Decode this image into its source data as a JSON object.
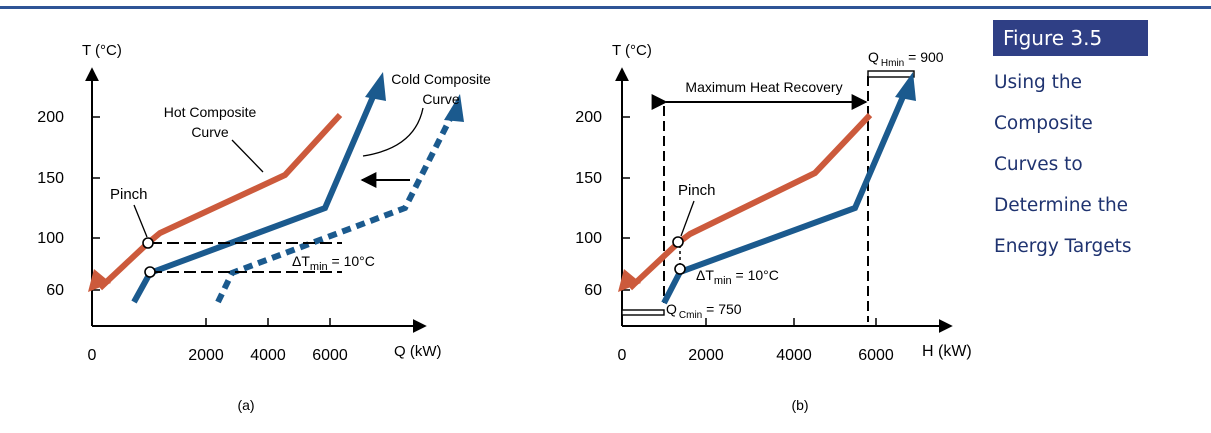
{
  "figure": {
    "number": "Figure 3.5",
    "caption_lines": [
      "Using the",
      "Composite",
      "Curves to",
      "Determine the",
      "Energy Targets"
    ]
  },
  "colors": {
    "hot": "#cc5a3c",
    "cold": "#1b5a8e",
    "rule": "#2f5496",
    "badge": "#2f3f85"
  },
  "charts": [
    {
      "panel_label": "(a)",
      "y_axis_label": "T (°C)",
      "x_axis_label": "Q (kW)",
      "origin_label": "0",
      "x_ticks": [
        "2000",
        "4000",
        "6000"
      ],
      "y_ticks": [
        "200",
        "150",
        "100",
        "60"
      ],
      "labels": {
        "hot_line1": "Hot Composite",
        "hot_line2": "Curve",
        "cold_line1": "Cold Composite",
        "cold_line2": "Curve",
        "pinch": "Pinch",
        "dtmin_main": "ΔT",
        "dtmin_sub": "min",
        "dtmin_rest": " = 10°C"
      },
      "hot_curve": [
        [
          4500,
          154
        ],
        [
          1600,
          104
        ],
        [
          1350,
          96
        ]
      ],
      "cold_curve": [
        [
          1000,
          55
        ],
        [
          1350,
          74
        ],
        [
          5400,
          126
        ]
      ],
      "cold_shifted": [
        [
          3100,
          55
        ],
        [
          3350,
          74
        ],
        [
          7400,
          126
        ],
        [
          8000,
          200
        ]
      ]
    },
    {
      "panel_label": "(b)",
      "y_axis_label": "T (°C)",
      "x_axis_label": "H (kW)",
      "origin_label": "0",
      "x_ticks": [
        "2000",
        "4000",
        "6000"
      ],
      "y_ticks": [
        "200",
        "150",
        "100",
        "60"
      ],
      "labels": {
        "max_heat_recovery": "Maximum Heat Recovery",
        "pinch": "Pinch",
        "dtmin_main": "ΔT",
        "dtmin_sub": "min",
        "dtmin_rest": " = 10°C",
        "qh_main": "Q",
        "qh_sub": "Hmin",
        "qh_rest": " = 900",
        "qc_main": "Q",
        "qc_sub": "Cmin",
        "qc_rest": " = 750"
      },
      "hot_curve": [
        [
          4500,
          154
        ],
        [
          1600,
          104
        ],
        [
          1350,
          96
        ]
      ],
      "cold_curve": [
        [
          1000,
          55
        ],
        [
          1350,
          74
        ],
        [
          5400,
          126
        ]
      ]
    }
  ]
}
